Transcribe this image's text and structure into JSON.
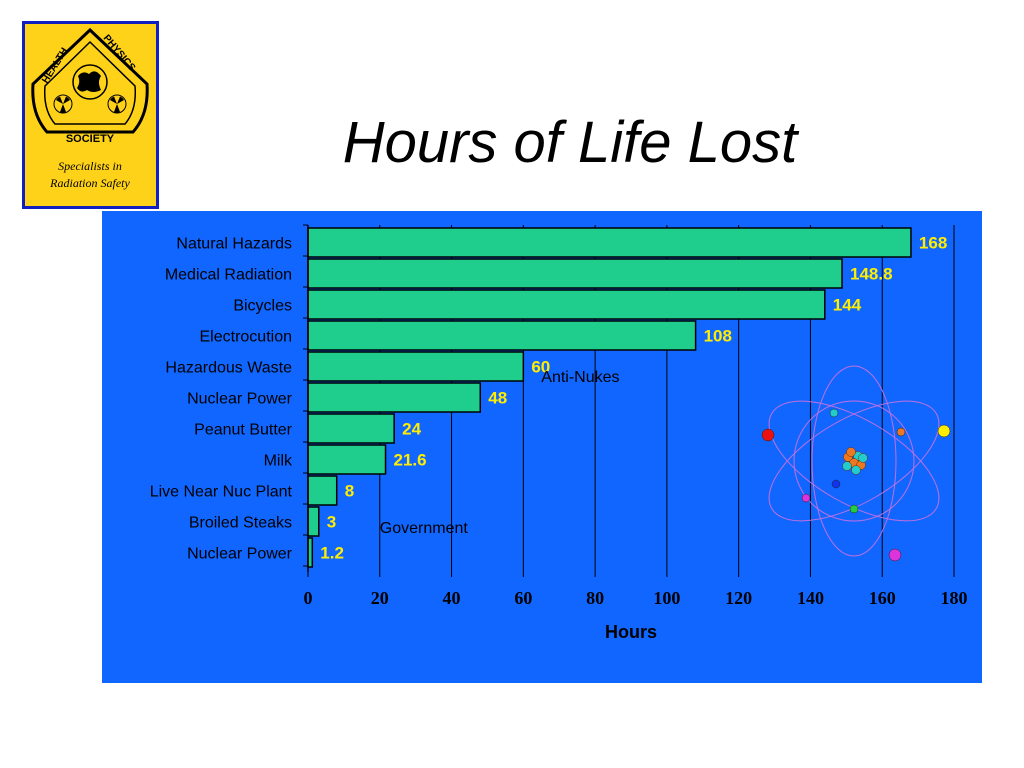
{
  "slide": {
    "title": "Hours of Life Lost"
  },
  "logo": {
    "ring_text": "HEALTH PHYSICS SOCIETY",
    "word_health": "HEALTH",
    "word_physics": "PHYSICS",
    "word_society": "SOCIETY",
    "tagline_line1": "Specialists in",
    "tagline_line2": "Radiation Safety",
    "background_color": "#ffd21a",
    "border_color": "#1020c0"
  },
  "chart_data": {
    "type": "bar",
    "orientation": "horizontal",
    "title": "",
    "xlabel": "Hours",
    "ylabel": "",
    "xlim": [
      0,
      180
    ],
    "x_ticks": [
      0,
      20,
      40,
      60,
      80,
      100,
      120,
      140,
      160,
      180
    ],
    "grid": "vertical",
    "categories": [
      "Natural Hazards",
      "Medical Radiation",
      "Bicycles",
      "Electrocution",
      "Hazardous Waste",
      "Nuclear Power",
      "Peanut Butter",
      "Milk",
      "Live Near Nuc Plant",
      "Broiled Steaks",
      "Nuclear Power"
    ],
    "values": [
      168,
      148.8,
      144,
      108,
      60,
      48,
      24,
      21.6,
      8,
      3,
      1.2
    ],
    "value_labels": [
      "168",
      "148.8",
      "144",
      "108",
      "60",
      "48",
      "24",
      "21.6",
      "8",
      "3",
      "1.2"
    ],
    "annotations": [
      {
        "text": "Anti-Nukes",
        "near_category_index": 5
      },
      {
        "text": "Government",
        "near_category_index": 10
      }
    ],
    "colors": {
      "panel_background": "#1166ff",
      "bar_fill": "#1fce8c",
      "bar_stroke": "#000000",
      "value_label": "#ffee00",
      "gridline": "#000000"
    }
  },
  "atom_graphic": {
    "icon": "atom-icon",
    "orbit_color": "#c070e0",
    "particle_colors": [
      "#ee1111",
      "#ffee00",
      "#ee7722",
      "#22cccc",
      "#1133ee",
      "#dd33dd",
      "#22cc44"
    ]
  }
}
